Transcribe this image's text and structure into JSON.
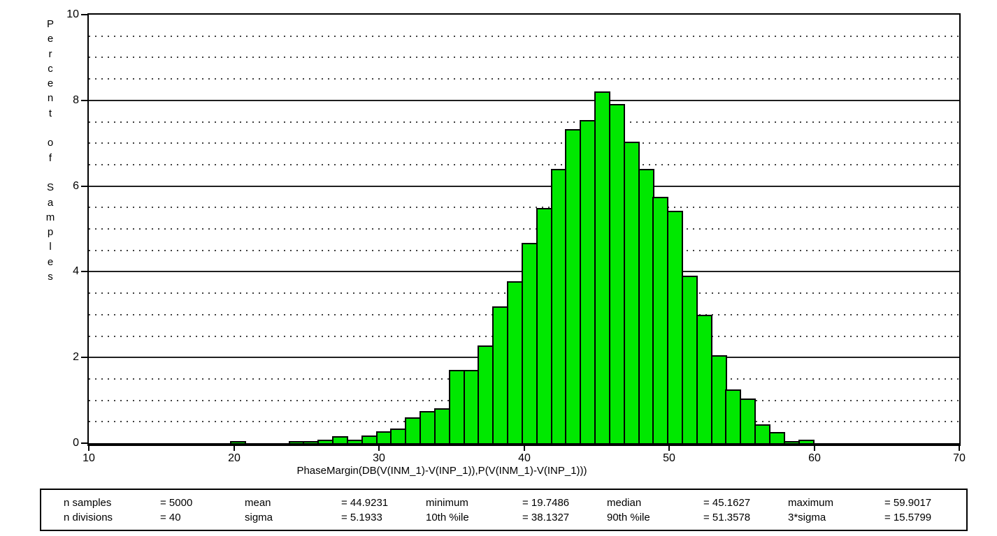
{
  "chart_data": {
    "type": "bar",
    "title": "",
    "xlabel": "PhaseMargin(DB(V(INM_1)-V(INP_1)),P(V(INM_1)-V(INP_1)))",
    "ylabel": "Percent of Samples",
    "xlim": [
      10,
      70
    ],
    "ylim": [
      0,
      10
    ],
    "x_ticks": [
      10,
      20,
      30,
      40,
      50,
      60,
      70
    ],
    "y_ticks": [
      0,
      2,
      4,
      6,
      8,
      10
    ],
    "grid": {
      "major_step": 2,
      "minor_step": 0.5,
      "major_style": "solid",
      "minor_style": "dotted"
    },
    "legend_position": "none",
    "bin_start": 19.7486,
    "bin_width": 1.00383,
    "n_bins": 40,
    "values": [
      0.04,
      0,
      0,
      0,
      0.02,
      0.02,
      0.06,
      0.14,
      0.06,
      0.16,
      0.26,
      0.32,
      0.58,
      0.74,
      0.8,
      1.7,
      1.7,
      2.26,
      3.18,
      3.76,
      4.66,
      5.48,
      6.38,
      7.32,
      7.52,
      8.2,
      7.9,
      7.02,
      6.38,
      5.74,
      5.4,
      3.9,
      2.98,
      2.04,
      1.24,
      1.02,
      0.42,
      0.24,
      0.04,
      0.06
    ],
    "colors": {
      "bar_fill": "#00E800",
      "bar_outline": "#000000",
      "grid_major": "#1f1f1f",
      "grid_minor": "#404040",
      "axis": "#000000",
      "background": "#ffffff"
    }
  },
  "stats_box": {
    "rows": [
      [
        {
          "label": "n samples",
          "value": "= 5000"
        },
        {
          "label": "mean",
          "value": "= 44.9231"
        },
        {
          "label": "minimum",
          "value": "= 19.7486"
        },
        {
          "label": "median",
          "value": "= 45.1627"
        },
        {
          "label": "maximum",
          "value": "= 59.9017"
        }
      ],
      [
        {
          "label": "n divisions",
          "value": "= 40"
        },
        {
          "label": "sigma",
          "value": "= 5.1933"
        },
        {
          "label": "10th %ile",
          "value": "= 38.1327"
        },
        {
          "label": "90th %ile",
          "value": "= 51.3578"
        },
        {
          "label": "3*sigma",
          "value": "= 15.5799"
        }
      ]
    ]
  }
}
